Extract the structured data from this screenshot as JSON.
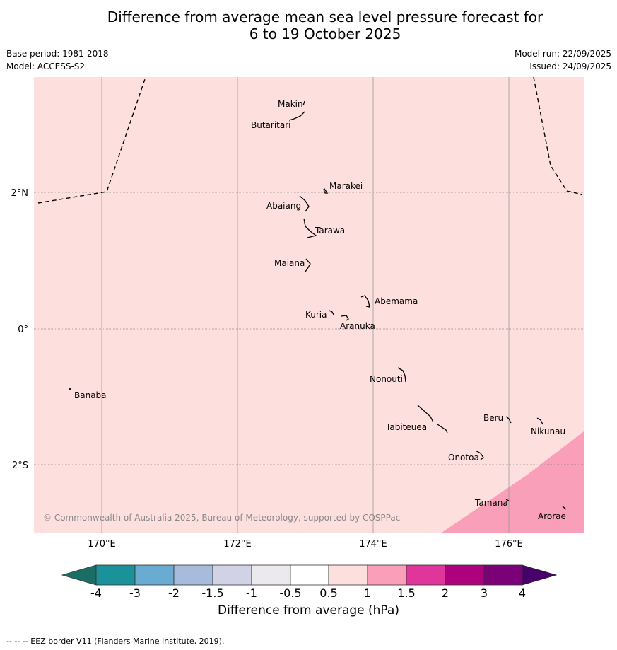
{
  "title": {
    "line1": "Difference from average mean sea level pressure forecast for",
    "line2": "6 to 19 October 2025"
  },
  "meta": {
    "base_period": "Base period: 1981-2018",
    "model": "Model: ACCESS-S2",
    "model_run": "Model run: 22/09/2025",
    "issued": "Issued: 24/09/2025"
  },
  "map": {
    "background_color": "#fde0de",
    "anomaly_region_color": "#f99fb9",
    "copyright": "© Commonwealth of Australia 2025, Bureau of Meteorology, supported by COSPPac",
    "lon_labels": [
      "170°E",
      "172°E",
      "174°E",
      "176°E"
    ],
    "lat_labels": [
      "2°N",
      "0°",
      "2°S"
    ],
    "places": [
      {
        "name": "Makin"
      },
      {
        "name": "Butaritari"
      },
      {
        "name": "Marakei"
      },
      {
        "name": "Abaiang"
      },
      {
        "name": "Tarawa"
      },
      {
        "name": "Maiana"
      },
      {
        "name": "Abemama"
      },
      {
        "name": "Kuria"
      },
      {
        "name": "Aranuka"
      },
      {
        "name": "Nonouti"
      },
      {
        "name": "Banaba"
      },
      {
        "name": "Beru"
      },
      {
        "name": "Nikunau"
      },
      {
        "name": "Tabiteuea"
      },
      {
        "name": "Onotoa"
      },
      {
        "name": "Tamana"
      },
      {
        "name": "Arorae"
      }
    ]
  },
  "colorbar": {
    "title": "Difference from average (hPa)",
    "tick_labels": [
      "-4",
      "-3",
      "-2",
      "-1.5",
      "-1",
      "-0.5",
      "0.5",
      "1",
      "1.5",
      "2",
      "3",
      "4"
    ],
    "colors": [
      "#1a6e66",
      "#1b9199",
      "#6aabd1",
      "#a7bcdc",
      "#d2d2e6",
      "#ebe8ee",
      "#ffffff",
      "#fde0de",
      "#f99fb9",
      "#e0359a",
      "#ae017e",
      "#7a0177",
      "#49006a"
    ]
  },
  "footer": {
    "note": "--  --  -- EEZ border V11 (Flanders Marine Institute, 2019)."
  }
}
